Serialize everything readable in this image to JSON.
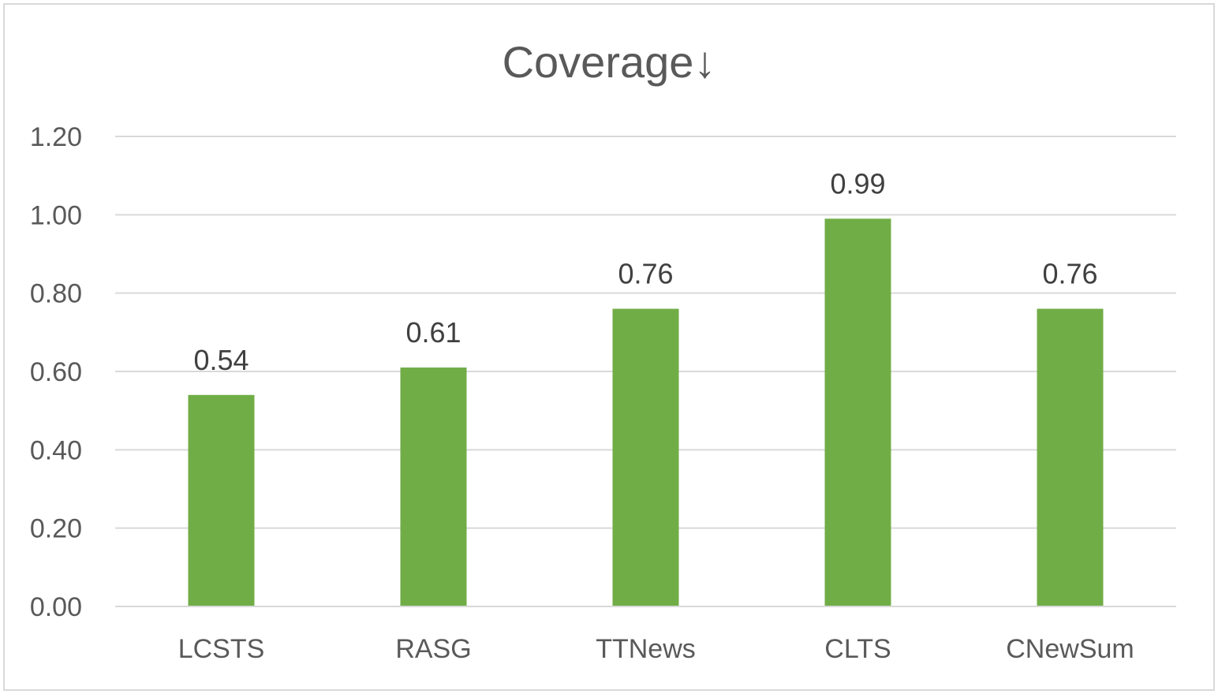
{
  "chart_data": {
    "type": "bar",
    "title": "Coverage↓",
    "categories": [
      "LCSTS",
      "RASG",
      "TTNews",
      "CLTS",
      "CNewSum"
    ],
    "values": [
      0.54,
      0.61,
      0.76,
      0.99,
      0.76
    ],
    "value_labels": [
      "0.54",
      "0.61",
      "0.76",
      "0.99",
      "0.76"
    ],
    "ylim": [
      0,
      1.2
    ],
    "y_ticks": [
      0,
      0.2,
      0.4,
      0.6,
      0.8,
      1.0,
      1.2
    ],
    "y_tick_labels": [
      "0.00",
      "0.20",
      "0.40",
      "0.60",
      "0.80",
      "1.00",
      "1.20"
    ],
    "grid": true,
    "legend": "none",
    "colors": {
      "bar": "#70ad47",
      "grid": "#d9d9d9",
      "text": "#595959",
      "label": "#404040",
      "border": "#d9d9d9"
    }
  }
}
